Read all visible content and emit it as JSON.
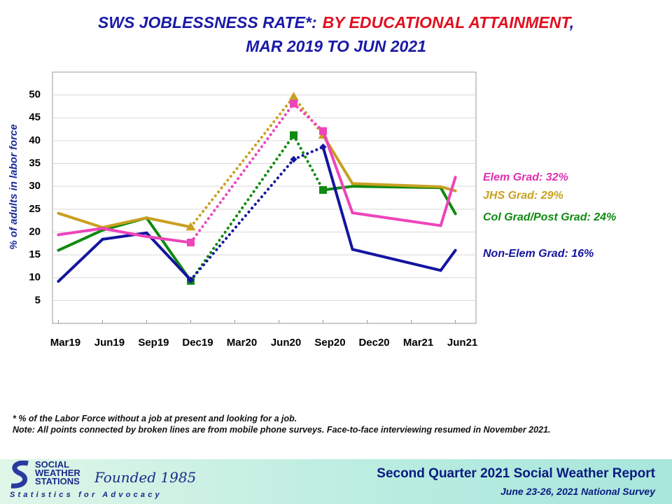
{
  "chart_data": {
    "type": "line",
    "title_parts": [
      "SWS JOBLESSNESS RATE*:",
      "BY EDUCATIONAL ATTAINMENT",
      ","
    ],
    "title_colors": [
      "#1a1aa8",
      "#e01020",
      "#1a1aa8"
    ],
    "subtitle": "MAR 2019 TO JUN 2021",
    "y_label": "% of adults in labor force",
    "x": [
      0,
      3,
      6,
      9,
      16,
      18,
      20,
      26,
      27
    ],
    "xlim": [
      -0.4,
      28.4
    ],
    "xticks": [
      {
        "value": 0,
        "label": "Mar19"
      },
      {
        "value": 3,
        "label": "Jun19"
      },
      {
        "value": 6,
        "label": "Sep19"
      },
      {
        "value": 9,
        "label": "Dec19"
      },
      {
        "value": 12,
        "label": "Mar20"
      },
      {
        "value": 15,
        "label": "Jun20"
      },
      {
        "value": 18,
        "label": "Sep20"
      },
      {
        "value": 21,
        "label": "Dec20"
      },
      {
        "value": 24,
        "label": "Mar21"
      },
      {
        "value": 27,
        "label": "Jun21"
      }
    ],
    "ylim": [
      0,
      55
    ],
    "yticks": [
      5,
      10,
      15,
      20,
      25,
      30,
      35,
      40,
      45,
      50
    ],
    "grid": true,
    "dotted_x_range": [
      9,
      18
    ],
    "series": [
      {
        "name": "Elem Grad: 32%",
        "color": "#ee44bb",
        "marker": "square",
        "values": [
          19.4,
          20.8,
          19.0,
          17.7,
          48.1,
          42.1,
          24.2,
          21.4,
          32
        ]
      },
      {
        "name": "JHS Grad: 29%",
        "color": "#c8a020",
        "marker": "triangle",
        "values": [
          24.1,
          21.0,
          23.1,
          21.1,
          49.6,
          41.2,
          30.6,
          29.9,
          29
        ]
      },
      {
        "name": "Col Grad/Post Grad: 24%",
        "color": "#108a10",
        "marker": "square",
        "values": [
          16.0,
          20.4,
          23.1,
          9.3,
          41.2,
          29.2,
          30.0,
          29.7,
          24
        ]
      },
      {
        "name": "Non-Elem Grad: 16%",
        "color": "#1414a0",
        "marker": "diamond",
        "values": [
          9.2,
          18.4,
          19.8,
          9.5,
          35.9,
          38.6,
          16.2,
          11.6,
          16
        ]
      }
    ]
  },
  "notes": [
    "* % of the Labor Force without  a job at present  and looking  for a job.",
    "Note: All points connected by broken lines are from mobile phone surveys. Face-to-face interviewing resumed in November 2021."
  ],
  "footer": {
    "org_name": [
      "SOCIAL",
      "WEATHER",
      "STATIONS"
    ],
    "founded": "Founded 1985",
    "motto": "Statistics for Advocacy",
    "report": "Second Quarter 2021 Social Weather Report",
    "survey": "June 23-26, 2021 National Survey"
  }
}
